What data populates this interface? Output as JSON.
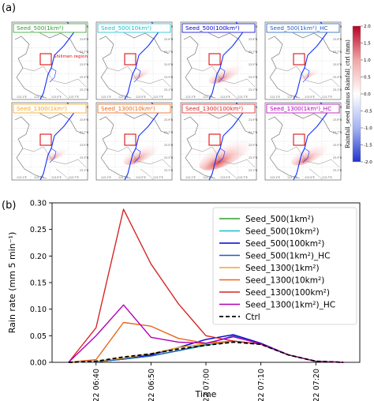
{
  "figure": {
    "panel_a_label": "(a)",
    "panel_b_label": "(b)"
  },
  "maps": {
    "region_label": "Shilimen region",
    "lat_labels": [
      "24.1°N",
      "23.9°N",
      "23.7°N",
      "23.5°N",
      "23.3°N",
      "23.1°N"
    ],
    "lon_labels": [
      "113.1°E",
      "113.3°E",
      "113.5°E",
      "113.7°E"
    ],
    "panels": [
      {
        "title": "Seed_500(1km²)",
        "color": "#2ca02c",
        "intensity": 0.0
      },
      {
        "title": "Seed_500(10km²)",
        "color": "#17becf",
        "intensity": 0.15
      },
      {
        "title": "Seed_500(100km²)",
        "color": "#0000cd",
        "intensity": 0.5
      },
      {
        "title": "Seed_500(1km²)_HC",
        "color": "#1f5fbf",
        "intensity": 0.1
      },
      {
        "title": "Seed_1300(1km²)",
        "color": "#f5a623",
        "intensity": 0.2
      },
      {
        "title": "Seed_1300(10km²)",
        "color": "#e8671c",
        "intensity": 0.55
      },
      {
        "title": "Seed_1300(100km²)",
        "color": "#d62728",
        "intensity": 1.0
      },
      {
        "title": "Seed_1300(1km²)_HC",
        "color": "#b000b5",
        "intensity": 0.6
      }
    ],
    "colorbar": {
      "label": "Rainfall_seed minus Rainfall_ctrl  (mm)",
      "ticks": [
        "2.0",
        "1.5",
        "1.0",
        "0.5",
        "0.0",
        "-0.5",
        "-1.0",
        "-1.5",
        "-2.0"
      ]
    }
  },
  "chart_data": {
    "type": "line",
    "xlabel": "Time",
    "ylabel": "Rain rate (mm 5 min⁻¹)",
    "x": [
      "22 06:35",
      "22 06:40",
      "22 06:45",
      "22 06:50",
      "22 06:55",
      "22 07:00",
      "22 07:05",
      "22 07:10",
      "22 07:15",
      "22 07:20",
      "22 07:25"
    ],
    "xticks": [
      "22 06:40",
      "22 06:50",
      "22 07:00",
      "22 07:10",
      "22 07:20"
    ],
    "ylim": [
      0,
      0.3
    ],
    "yticks": [
      "0.00",
      "0.05",
      "0.10",
      "0.15",
      "0.20",
      "0.25",
      "0.30"
    ],
    "legend_position": "right",
    "series": [
      {
        "name": "Seed_500(1km²)",
        "color": "#2ca02c",
        "dash": false,
        "values": [
          0,
          0.001,
          0.006,
          0.012,
          0.022,
          0.032,
          0.04,
          0.034,
          0.014,
          0.002,
          0
        ]
      },
      {
        "name": "Seed_500(10km²)",
        "color": "#17becf",
        "dash": false,
        "values": [
          0,
          0.001,
          0.006,
          0.012,
          0.022,
          0.032,
          0.04,
          0.034,
          0.014,
          0.002,
          0
        ]
      },
      {
        "name": "Seed_500(100km²)",
        "color": "#0000cd",
        "dash": false,
        "values": [
          0,
          0.001,
          0.006,
          0.014,
          0.028,
          0.043,
          0.052,
          0.036,
          0.014,
          0.002,
          0
        ]
      },
      {
        "name": "Seed_500(1km²)_HC",
        "color": "#1f5fbf",
        "dash": false,
        "values": [
          0,
          0.001,
          0.006,
          0.012,
          0.022,
          0.034,
          0.05,
          0.034,
          0.014,
          0.002,
          0
        ]
      },
      {
        "name": "Seed_1300(1km²)",
        "color": "#f5a623",
        "dash": false,
        "values": [
          0,
          0.002,
          0.008,
          0.016,
          0.028,
          0.035,
          0.04,
          0.034,
          0.014,
          0.002,
          0
        ]
      },
      {
        "name": "Seed_1300(10km²)",
        "color": "#e8671c",
        "dash": false,
        "values": [
          0,
          0.005,
          0.075,
          0.068,
          0.045,
          0.036,
          0.04,
          0.034,
          0.014,
          0.002,
          0
        ]
      },
      {
        "name": "Seed_1300(100km²)",
        "color": "#d62728",
        "dash": false,
        "values": [
          0,
          0.065,
          0.288,
          0.185,
          0.11,
          0.05,
          0.04,
          0.034,
          0.014,
          0.002,
          0
        ]
      },
      {
        "name": "Seed_1300(1km²)_HC",
        "color": "#b000b5",
        "dash": false,
        "values": [
          0,
          0.05,
          0.108,
          0.047,
          0.038,
          0.036,
          0.048,
          0.035,
          0.014,
          0.002,
          0
        ]
      },
      {
        "name": "Ctrl",
        "color": "#000000",
        "dash": true,
        "values": [
          0,
          0.002,
          0.01,
          0.016,
          0.025,
          0.032,
          0.038,
          0.034,
          0.014,
          0.002,
          0
        ]
      }
    ]
  }
}
